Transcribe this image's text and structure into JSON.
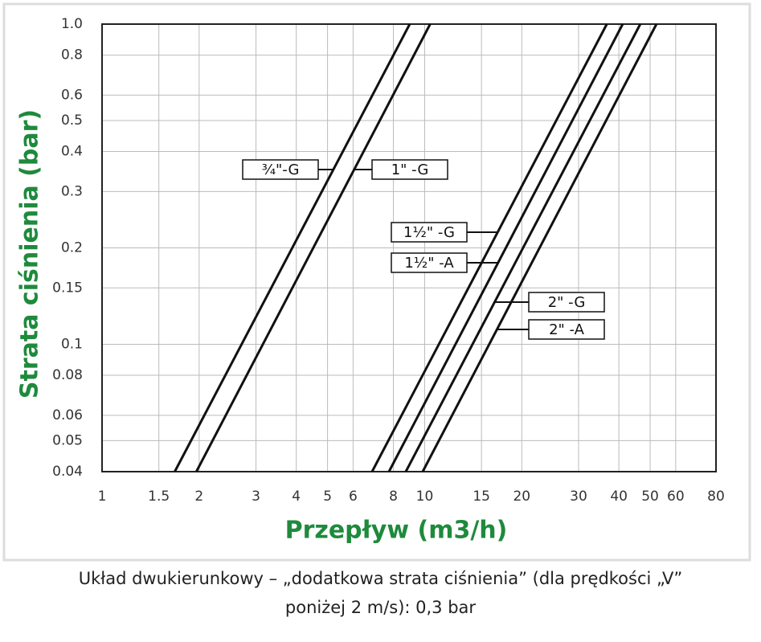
{
  "chart_data": {
    "type": "line",
    "x_label": "Przepływ (m3/h)",
    "y_label": "Strata ciśnienia (bar)",
    "log_x": true,
    "log_y": true,
    "grid": true,
    "color": "#111111",
    "xlim": [
      1,
      80
    ],
    "ylim": [
      0.04,
      1
    ],
    "xticks": [
      1,
      1.5,
      2,
      3,
      4,
      5,
      6,
      8,
      10,
      15,
      20,
      30,
      40,
      50,
      60,
      80
    ],
    "yticks": [
      {
        "value": 1,
        "label": "1.0"
      },
      0.8,
      0.6,
      0.5,
      0.4,
      0.3,
      0.2,
      0.15,
      0.1,
      0.08,
      0.06,
      0.05,
      0.04
    ],
    "series": [
      {
        "name": "¾\"-G",
        "x": [
          1.68,
          8.99
        ],
        "values": [
          0.04,
          1
        ]
      },
      {
        "name": "1\" -G",
        "x": [
          1.96,
          10.4
        ],
        "values": [
          0.04,
          1
        ]
      },
      {
        "name": "1½\" -G",
        "x": [
          6.87,
          36.7
        ],
        "values": [
          0.04,
          1
        ]
      },
      {
        "name": "1½\" -A",
        "x": [
          7.75,
          41.1
        ],
        "values": [
          0.04,
          1
        ]
      },
      {
        "name": "2\" -G",
        "x": [
          8.74,
          46.6
        ],
        "values": [
          0.04,
          1
        ]
      },
      {
        "name": "2\" -A",
        "x": [
          9.86,
          52.3
        ],
        "values": [
          0.04,
          1
        ]
      }
    ],
    "caption": [
      "Układ dwukierunkowy – „dodatkowa strata ciśnienia” (dla prędkości „V”",
      "poniżej 2 m/s): 0,3 bar"
    ]
  }
}
